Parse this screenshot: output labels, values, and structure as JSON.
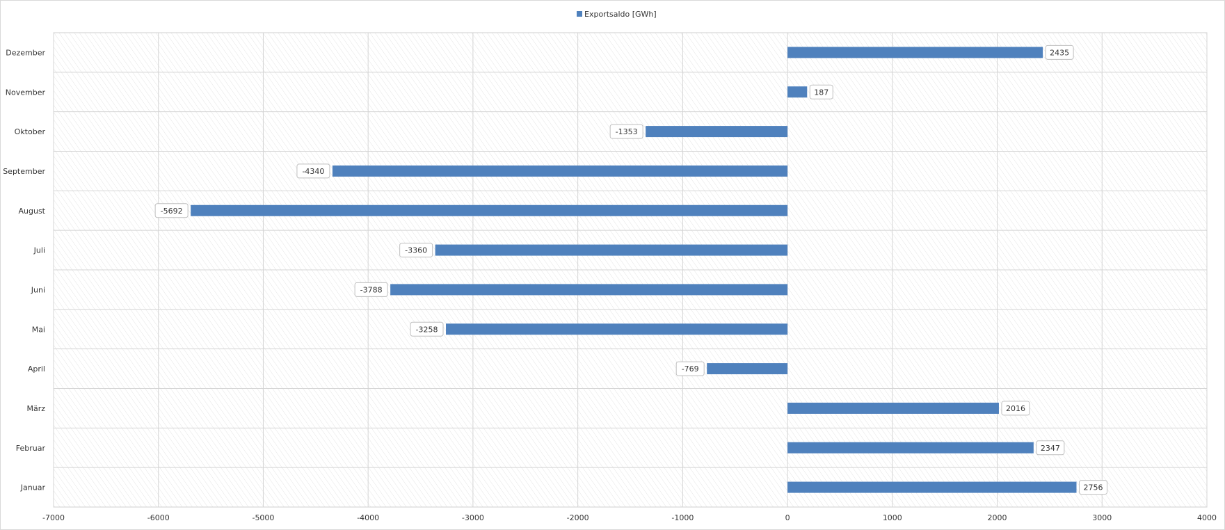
{
  "chart_data": {
    "type": "bar",
    "orientation": "horizontal",
    "categories": [
      "Januar",
      "Februar",
      "März",
      "April",
      "Mai",
      "Juni",
      "Juli",
      "August",
      "September",
      "Oktober",
      "November",
      "Dezember"
    ],
    "series": [
      {
        "name": "Exportsaldo [GWh]",
        "color": "#4f81bd",
        "values": [
          2756,
          2347,
          2016,
          -769,
          -3258,
          -3788,
          -3360,
          -5692,
          -4340,
          -1353,
          187,
          2435
        ]
      }
    ],
    "xlim": [
      -7000,
      4000
    ],
    "xticks": [
      -7000,
      -6000,
      -5000,
      -4000,
      -3000,
      -2000,
      -1000,
      0,
      1000,
      2000,
      3000,
      4000
    ],
    "grid": true,
    "legend_position": "top-center",
    "data_labels": true
  }
}
